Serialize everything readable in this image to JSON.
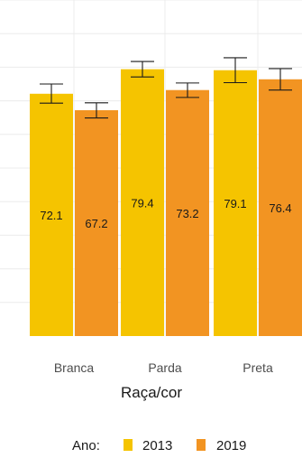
{
  "chart_data": {
    "type": "bar",
    "categories": [
      "Branca",
      "Parda",
      "Preta"
    ],
    "xlabel": "Raça/cor",
    "ylabel": "",
    "ylim": [
      0,
      100
    ],
    "grid": true,
    "legend": {
      "title": "Ano:",
      "position": "bottom"
    },
    "colors": {
      "2013": "#F5C400",
      "2019": "#F29422"
    },
    "series": [
      {
        "name": "2013",
        "values": [
          72.1,
          79.4,
          79.1
        ],
        "error_low": [
          69.3,
          77.1,
          75.4
        ],
        "error_high": [
          75.0,
          81.7,
          82.8
        ],
        "labels": [
          "72.1",
          "79.4",
          "79.1"
        ]
      },
      {
        "name": "2019",
        "values": [
          67.2,
          73.2,
          76.4
        ],
        "error_low": [
          64.9,
          71.0,
          73.2
        ],
        "error_high": [
          69.4,
          75.3,
          79.6
        ],
        "labels": [
          "67.2",
          "73.2",
          "76.4"
        ]
      }
    ]
  }
}
